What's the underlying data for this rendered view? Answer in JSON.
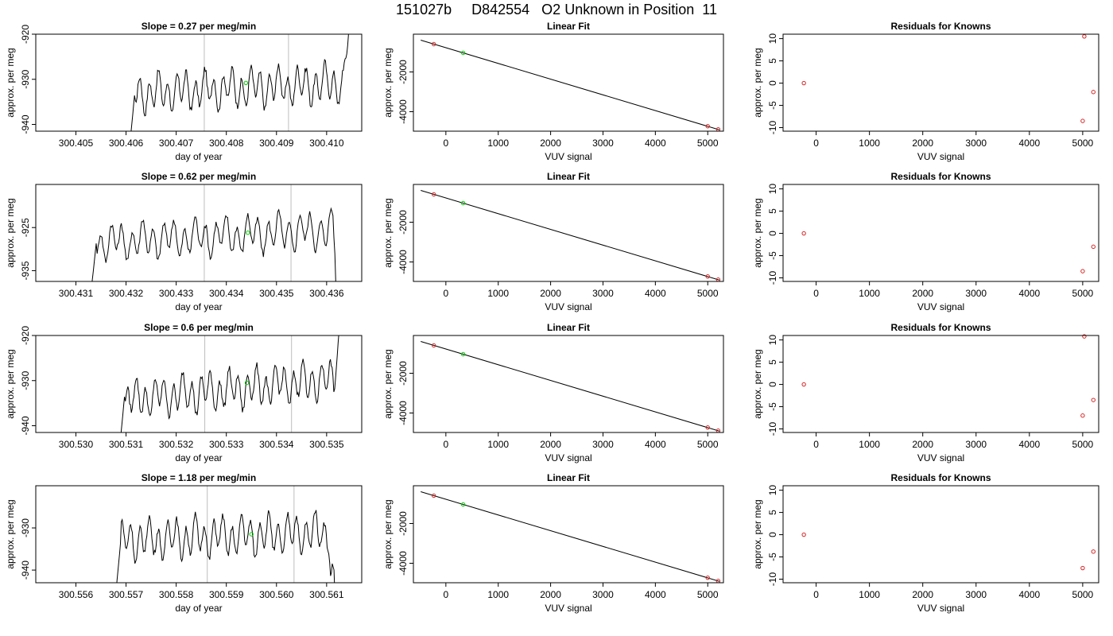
{
  "figure": {
    "title": "151027b     D842554   O2 Unknown in Position  11"
  },
  "colors": {
    "trace": "#000000",
    "vline": "#bebebe",
    "known_point": "#d62728",
    "unknown_point": "#00cc00",
    "frame": "#000000"
  },
  "rows": [
    {
      "time_panel": {
        "title": "Slope =  0.27  per meg/min",
        "xlabel": "day of year",
        "ylabel": "approx. per meg",
        "xlim": [
          300.4042,
          300.4107
        ],
        "ylim": [
          -941.5,
          -920
        ],
        "xticks": [
          "300.405",
          "300.406",
          "300.407",
          "300.408",
          "300.409",
          "300.410"
        ],
        "yticks": [
          "-940",
          "-930",
          "-920"
        ],
        "vlines": [
          300.40756,
          300.40924
        ],
        "trace_start": 300.40605,
        "trace_end": 300.41047,
        "trace_center": -932,
        "trace_amp": 4.5,
        "trace_drift": 0.6,
        "unknown_point": {
          "x": 300.40839,
          "y": -930.8
        }
      },
      "fit_panel": {
        "title": "Linear Fit",
        "xlabel": "VUV signal",
        "ylabel": "approx. per meg",
        "xlim": [
          -620,
          5300
        ],
        "ylim": [
          -4980,
          -100
        ],
        "xticks": [
          "0",
          "1000",
          "2000",
          "3000",
          "4000",
          "5000"
        ],
        "yticks": [
          "-4000",
          "-2000"
        ],
        "line_x": [
          -480,
          5220
        ],
        "line_y": [
          -400,
          -4910
        ],
        "known_points": [
          {
            "x": -230,
            "y": -600
          },
          {
            "x": 5000,
            "y": -4730
          },
          {
            "x": 5200,
            "y": -4890
          }
        ],
        "unknown_point": {
          "x": 330,
          "y": -1040
        }
      },
      "resid_panel": {
        "title": "Residuals for Knowns",
        "xlabel": "VUV signal",
        "ylabel": "approx. per meg",
        "xlim": [
          -620,
          5300
        ],
        "ylim": [
          -10.8,
          11
        ],
        "xticks": [
          "0",
          "1000",
          "2000",
          "3000",
          "4000",
          "5000"
        ],
        "yticks": [
          "-10",
          "-5",
          "0",
          "5",
          "10"
        ],
        "points": [
          {
            "x": -230,
            "y": 0
          },
          {
            "x": 5000,
            "y": -8.5
          },
          {
            "x": 5030,
            "y": 10.5
          },
          {
            "x": 5200,
            "y": -2
          }
        ]
      }
    },
    {
      "time_panel": {
        "title": "Slope =  0.62  per meg/min",
        "xlabel": "day of year",
        "ylabel": "approx. per meg",
        "xlim": [
          300.4302,
          300.4367
        ],
        "ylim": [
          -937.5,
          -915
        ],
        "xticks": [
          "300.431",
          "300.432",
          "300.433",
          "300.434",
          "300.435",
          "300.436"
        ],
        "yticks": [
          "-935",
          "-925"
        ],
        "vlines": [
          300.43356,
          300.43529
        ],
        "trace_start": 300.43127,
        "trace_end": 300.43628,
        "trace_center": -927,
        "trace_amp": 4.5,
        "trace_drift": 0.8,
        "unknown_point": {
          "x": 300.43443,
          "y": -926.2
        }
      },
      "fit_panel": {
        "title": "Linear Fit",
        "xlabel": "VUV signal",
        "ylabel": "approx. per meg",
        "xlim": [
          -620,
          5300
        ],
        "ylim": [
          -4980,
          -100
        ],
        "xticks": [
          "0",
          "1000",
          "2000",
          "3000",
          "4000",
          "5000"
        ],
        "yticks": [
          "-4000",
          "-2000"
        ],
        "line_x": [
          -480,
          5220
        ],
        "line_y": [
          -400,
          -4910
        ],
        "known_points": [
          {
            "x": -230,
            "y": -600
          },
          {
            "x": 5000,
            "y": -4730
          },
          {
            "x": 5200,
            "y": -4890
          }
        ],
        "unknown_point": {
          "x": 330,
          "y": -1040
        }
      },
      "resid_panel": {
        "title": "Residuals for Knowns",
        "xlabel": "VUV signal",
        "ylabel": "approx. per meg",
        "xlim": [
          -620,
          5300
        ],
        "ylim": [
          -10.8,
          11
        ],
        "xticks": [
          "0",
          "1000",
          "2000",
          "3000",
          "4000",
          "5000"
        ],
        "yticks": [
          "-10",
          "-5",
          "0",
          "5",
          "10"
        ],
        "points": [
          {
            "x": -230,
            "y": 0
          },
          {
            "x": 5000,
            "y": -8.5
          },
          {
            "x": 5200,
            "y": -3
          }
        ]
      }
    },
    {
      "time_panel": {
        "title": "Slope =  0.6  per meg/min",
        "xlabel": "day of year",
        "ylabel": "approx. per meg",
        "xlim": [
          300.5292,
          300.5357
        ],
        "ylim": [
          -941.5,
          -920
        ],
        "xticks": [
          "300.530",
          "300.531",
          "300.532",
          "300.533",
          "300.534",
          "300.535"
        ],
        "yticks": [
          "-940",
          "-930",
          "-920"
        ],
        "vlines": [
          300.53257,
          300.5343
        ],
        "trace_start": 300.53085,
        "trace_end": 300.53528,
        "trace_center": -932,
        "trace_amp": 4.5,
        "trace_drift": 1.2,
        "unknown_point": {
          "x": 300.53341,
          "y": -930.5
        }
      },
      "fit_panel": {
        "title": "Linear Fit",
        "xlabel": "VUV signal",
        "ylabel": "approx. per meg",
        "xlim": [
          -620,
          5300
        ],
        "ylim": [
          -4980,
          -100
        ],
        "xticks": [
          "0",
          "1000",
          "2000",
          "3000",
          "4000",
          "5000"
        ],
        "yticks": [
          "-4000",
          "-2000"
        ],
        "line_x": [
          -480,
          5220
        ],
        "line_y": [
          -400,
          -4910
        ],
        "known_points": [
          {
            "x": -230,
            "y": -600
          },
          {
            "x": 5000,
            "y": -4730
          },
          {
            "x": 5200,
            "y": -4890
          }
        ],
        "unknown_point": {
          "x": 330,
          "y": -1040
        }
      },
      "resid_panel": {
        "title": "Residuals for Knowns",
        "xlabel": "VUV signal",
        "ylabel": "approx. per meg",
        "xlim": [
          -620,
          5300
        ],
        "ylim": [
          -10.8,
          11
        ],
        "xticks": [
          "0",
          "1000",
          "2000",
          "3000",
          "4000",
          "5000"
        ],
        "yticks": [
          "-10",
          "-5",
          "0",
          "5",
          "10"
        ],
        "points": [
          {
            "x": -230,
            "y": 0
          },
          {
            "x": 5000,
            "y": -7
          },
          {
            "x": 5030,
            "y": 10.8
          },
          {
            "x": 5200,
            "y": -3.5
          }
        ]
      }
    },
    {
      "time_panel": {
        "title": "Slope =  1.18  per meg/min",
        "xlabel": "day of year",
        "ylabel": "approx. per meg",
        "xlim": [
          300.5552,
          300.5617
        ],
        "ylim": [
          -943,
          -920
        ],
        "xticks": [
          "300.556",
          "300.557",
          "300.558",
          "300.559",
          "300.560",
          "300.561"
        ],
        "yticks": [
          "-940",
          "-930"
        ],
        "vlines": [
          300.55862,
          300.56035
        ],
        "trace_start": 300.55677,
        "trace_end": 300.56118,
        "trace_center": -932,
        "trace_amp": 5,
        "trace_drift": 0.5,
        "unknown_point": {
          "x": 300.5595,
          "y": -931.5
        }
      },
      "fit_panel": {
        "title": "Linear Fit",
        "xlabel": "VUV signal",
        "ylabel": "approx. per meg",
        "xlim": [
          -620,
          5300
        ],
        "ylim": [
          -4980,
          -100
        ],
        "xticks": [
          "0",
          "1000",
          "2000",
          "3000",
          "4000",
          "5000"
        ],
        "yticks": [
          "-4000",
          "-2000"
        ],
        "line_x": [
          -480,
          5220
        ],
        "line_y": [
          -400,
          -4910
        ],
        "known_points": [
          {
            "x": -230,
            "y": -600
          },
          {
            "x": 5000,
            "y": -4730
          },
          {
            "x": 5200,
            "y": -4890
          }
        ],
        "unknown_point": {
          "x": 330,
          "y": -1040
        }
      },
      "resid_panel": {
        "title": "Residuals for Knowns",
        "xlabel": "VUV signal",
        "ylabel": "approx. per meg",
        "xlim": [
          -620,
          5300
        ],
        "ylim": [
          -10.8,
          11
        ],
        "xticks": [
          "0",
          "1000",
          "2000",
          "3000",
          "4000",
          "5000"
        ],
        "yticks": [
          "-10",
          "-5",
          "0",
          "5",
          "10"
        ],
        "points": [
          {
            "x": -230,
            "y": 0
          },
          {
            "x": 5000,
            "y": -7.5
          },
          {
            "x": 5200,
            "y": -3.8
          }
        ]
      }
    }
  ],
  "chart_data": [
    {
      "type": "line",
      "title": "Slope =  0.27  per meg/min",
      "xlabel": "day of year",
      "ylabel": "approx. per meg",
      "xlim": [
        300.4042,
        300.4107
      ],
      "ylim": [
        -941.5,
        -920
      ],
      "grid": false
    },
    {
      "type": "scatter",
      "title": "Linear Fit",
      "xlabel": "VUV signal",
      "ylabel": "approx. per meg",
      "grid": false
    },
    {
      "type": "scatter",
      "title": "Residuals for Knowns",
      "xlabel": "VUV signal",
      "ylabel": "approx. per meg",
      "ylim": [
        -10.8,
        11
      ],
      "grid": false
    },
    {
      "type": "line",
      "title": "Slope =  0.62  per meg/min",
      "xlabel": "day of year",
      "ylabel": "approx. per meg",
      "xlim": [
        300.4302,
        300.4367
      ],
      "ylim": [
        -937.5,
        -915
      ],
      "grid": false
    },
    {
      "type": "scatter",
      "title": "Linear Fit",
      "xlabel": "VUV signal",
      "ylabel": "approx. per meg",
      "grid": false
    },
    {
      "type": "scatter",
      "title": "Residuals for Knowns",
      "xlabel": "VUV signal",
      "ylabel": "approx. per meg",
      "ylim": [
        -10.8,
        11
      ],
      "grid": false
    },
    {
      "type": "line",
      "title": "Slope =  0.6  per meg/min",
      "xlabel": "day of year",
      "ylabel": "approx. per meg",
      "xlim": [
        300.5292,
        300.5357
      ],
      "ylim": [
        -941.5,
        -920
      ],
      "grid": false
    },
    {
      "type": "scatter",
      "title": "Linear Fit",
      "xlabel": "VUV signal",
      "ylabel": "approx. per meg",
      "grid": false
    },
    {
      "type": "scatter",
      "title": "Residuals for Knowns",
      "xlabel": "VUV signal",
      "ylabel": "approx. per meg",
      "ylim": [
        -10.8,
        11
      ],
      "grid": false
    },
    {
      "type": "line",
      "title": "Slope =  1.18  per meg/min",
      "xlabel": "day of year",
      "ylabel": "approx. per meg",
      "xlim": [
        300.5552,
        300.5617
      ],
      "ylim": [
        -943,
        -920
      ],
      "grid": false
    },
    {
      "type": "scatter",
      "title": "Linear Fit",
      "xlabel": "VUV signal",
      "ylabel": "approx. per meg",
      "grid": false
    },
    {
      "type": "scatter",
      "title": "Residuals for Knowns",
      "xlabel": "VUV signal",
      "ylabel": "approx. per meg",
      "ylim": [
        -10.8,
        11
      ],
      "grid": false
    }
  ]
}
